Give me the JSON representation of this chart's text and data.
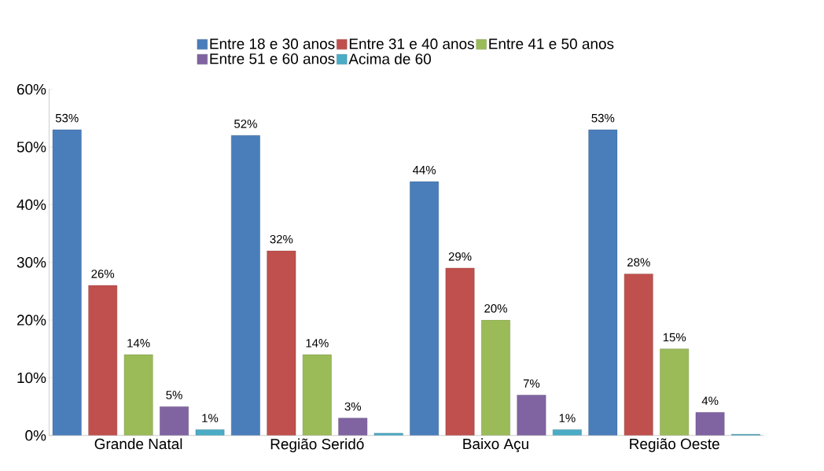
{
  "chart_data": {
    "type": "bar",
    "categories": [
      "Grande Natal",
      "Região Seridó",
      "Baixo Açu",
      "Região Oeste"
    ],
    "series": [
      {
        "name": "Entre 18 e 30 anos",
        "color": "#4a7ebb",
        "values": [
          53,
          52,
          44,
          53
        ],
        "value_labels": [
          "53%",
          "52%",
          "44%",
          "53%"
        ]
      },
      {
        "name": "Entre 31 e 40 anos",
        "color": "#c0504d",
        "values": [
          26,
          32,
          29,
          28
        ],
        "value_labels": [
          "26%",
          "32%",
          "29%",
          "28%"
        ]
      },
      {
        "name": "Entre 41 e 50 anos",
        "color": "#9bbb59",
        "values": [
          14,
          14,
          20,
          15
        ],
        "value_labels": [
          "14%",
          "14%",
          "20%",
          "15%"
        ]
      },
      {
        "name": "Entre 51 e 60 anos",
        "color": "#8064a2",
        "values": [
          5,
          3,
          7,
          4
        ],
        "value_labels": [
          "5%",
          "3%",
          "7%",
          "4%"
        ]
      },
      {
        "name": "Acima de 60",
        "color": "#4bacc6",
        "values": [
          1,
          0.4,
          1,
          0.2
        ],
        "value_labels": [
          "1%",
          null,
          "1%",
          null
        ]
      }
    ],
    "ylim": [
      0,
      60
    ],
    "yticks": [
      {
        "value": 0,
        "label": "0%"
      },
      {
        "value": 10,
        "label": "10%"
      },
      {
        "value": 20,
        "label": "20%"
      },
      {
        "value": 30,
        "label": "30%"
      },
      {
        "value": 40,
        "label": "40%"
      },
      {
        "value": 50,
        "label": "50%"
      },
      {
        "value": 60,
        "label": "60%"
      }
    ],
    "legend": "top",
    "grid": false
  }
}
